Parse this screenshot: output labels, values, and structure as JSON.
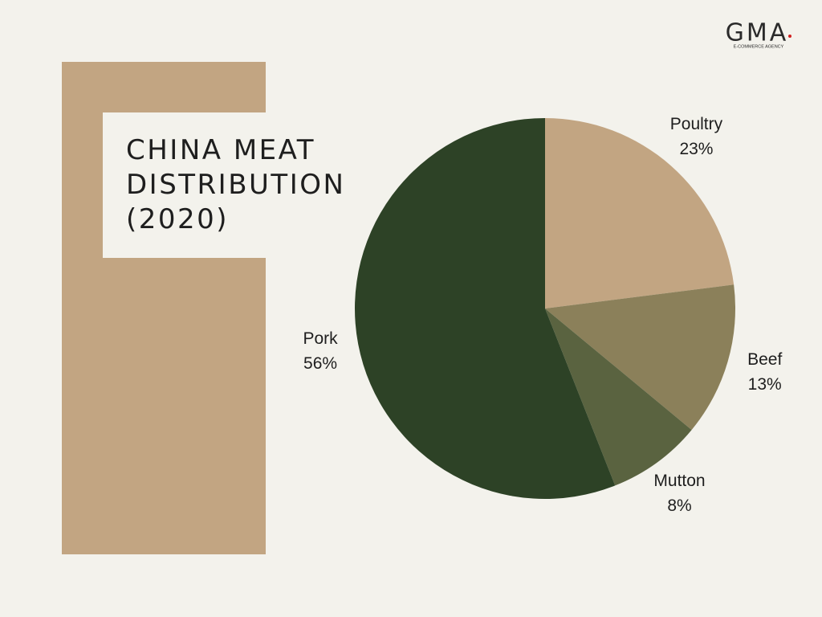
{
  "logo": {
    "name": "GMA",
    "tagline": "E-COMMERCE AGENCY"
  },
  "chart_data": {
    "type": "pie",
    "title": "CHINA MEAT DISTRIBUTION (2020)",
    "categories": [
      "Poultry",
      "Beef",
      "Mutton",
      "Pork"
    ],
    "values": [
      23,
      13,
      8,
      56
    ],
    "value_labels": [
      "23%",
      "13%",
      "8%",
      "56%"
    ],
    "colors": [
      "#c2a582",
      "#8b805a",
      "#5a6340",
      "#2d4226"
    ]
  }
}
